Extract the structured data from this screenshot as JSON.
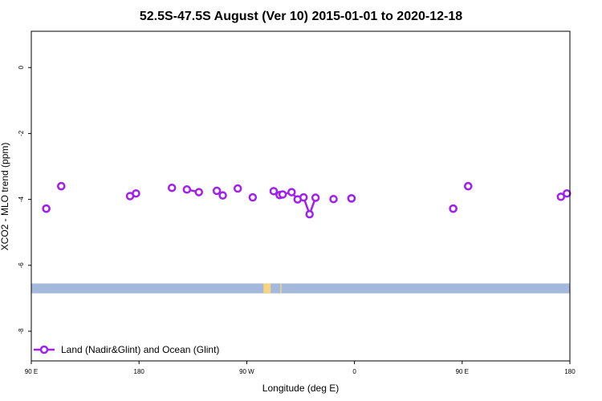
{
  "chart_data": {
    "type": "line",
    "title": "52.5S-47.5S August (Ver 10)   2015-01-01 to 2020-12-18",
    "xlabel": "Longitude (deg E)",
    "ylabel": "XCO2 - MLO trend (ppm)",
    "xlim": [
      90,
      540
    ],
    "ylim": [
      -8.9,
      1.1
    ],
    "x_ticks": [
      {
        "value": 90,
        "label": "90 E"
      },
      {
        "value": 180,
        "label": "180"
      },
      {
        "value": 270,
        "label": "90 W"
      },
      {
        "value": 360,
        "label": "0"
      },
      {
        "value": 450,
        "label": "90 E"
      },
      {
        "value": 540,
        "label": "180"
      }
    ],
    "y_ticks": [
      {
        "value": 0,
        "label": "0"
      },
      {
        "value": -2,
        "label": "-2"
      },
      {
        "value": -4,
        "label": "-4"
      },
      {
        "value": -6,
        "label": "-6"
      },
      {
        "value": -8,
        "label": "-8"
      }
    ],
    "grid": false,
    "legend": {
      "position": "bottom-left",
      "color": "#a020f0"
    },
    "series": [
      {
        "name": "Land (Nadir&Glint) and Ocean (Glint)",
        "color": "#a020f0",
        "points": [
          [
            102.5,
            -4.28
          ],
          [
            102.5,
            -4.28
          ],
          [
            115,
            -3.6
          ],
          [
            115,
            -3.6
          ],
          [
            172.5,
            -3.9
          ],
          [
            177.5,
            -3.82
          ],
          [
            207.5,
            -3.65
          ],
          [
            220,
            -3.7
          ],
          [
            230,
            -3.78
          ],
          [
            245,
            -3.74
          ],
          [
            250,
            -3.88
          ],
          [
            262.5,
            -3.67
          ],
          [
            275,
            -3.94
          ],
          [
            292.5,
            -3.75
          ],
          [
            297.5,
            -3.87
          ],
          [
            300,
            -3.85
          ],
          [
            307.5,
            -3.78
          ],
          [
            312.5,
            -4.0
          ],
          [
            317.5,
            -3.94
          ],
          [
            322.5,
            -4.45
          ],
          [
            327.5,
            -3.95
          ],
          [
            342.5,
            -3.99
          ],
          [
            357.5,
            -3.97
          ],
          [
            357.5,
            -3.97
          ],
          [
            442.5,
            -4.28
          ],
          [
            442.5,
            -4.28
          ],
          [
            455,
            -3.6
          ],
          [
            455,
            -3.6
          ],
          [
            532.5,
            -3.92
          ],
          [
            537.5,
            -3.82
          ]
        ]
      }
    ],
    "map_band": {
      "y_top": -6.55,
      "y_bottom": -6.85,
      "ocean_color": "#a5b9dc",
      "land_color": "#f5d580",
      "land": [
        [
          284,
          290
        ],
        [
          298,
          299
        ]
      ]
    }
  }
}
